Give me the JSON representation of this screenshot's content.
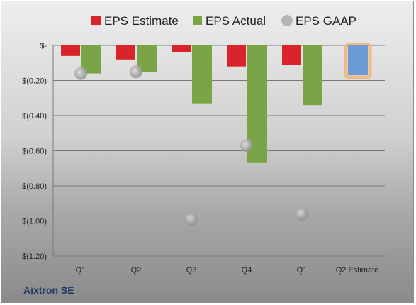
{
  "company": "Aixtron SE",
  "colors": {
    "estimate": "#d9242b",
    "actual": "#7aa547",
    "gaap": "#b4b4b4",
    "estimate_bar": "#6b9bd5",
    "estimate_glow": "#f0b474",
    "grid": "#7a7a7a"
  },
  "chart_data": {
    "type": "bar",
    "title": "",
    "xlabel": "",
    "ylabel": "",
    "ylim": [
      -1.2,
      0
    ],
    "grid": true,
    "legend_position": "top",
    "categories": [
      "Q1",
      "Q2",
      "Q3",
      "Q4",
      "Q1",
      "Q2 Estimate"
    ],
    "y_ticks": [
      {
        "value": 0,
        "label": "$-"
      },
      {
        "value": -0.2,
        "label": "$(0.20)"
      },
      {
        "value": -0.4,
        "label": "$(0.40)"
      },
      {
        "value": -0.6,
        "label": "$(0.60)"
      },
      {
        "value": -0.8,
        "label": "$(0.80)"
      },
      {
        "value": -1.0,
        "label": "$(1.00)"
      },
      {
        "value": -1.2,
        "label": "$(1.20)"
      }
    ],
    "series": [
      {
        "name": "EPS Estimate",
        "kind": "bar",
        "values": [
          -0.06,
          -0.08,
          -0.04,
          -0.12,
          -0.11,
          -0.17
        ]
      },
      {
        "name": "EPS Actual",
        "kind": "bar",
        "values": [
          -0.16,
          -0.15,
          -0.33,
          -0.67,
          -0.34,
          null
        ]
      },
      {
        "name": "EPS GAAP",
        "kind": "point",
        "values": [
          -0.16,
          -0.15,
          -0.99,
          -0.57,
          -0.96,
          null
        ]
      }
    ]
  }
}
